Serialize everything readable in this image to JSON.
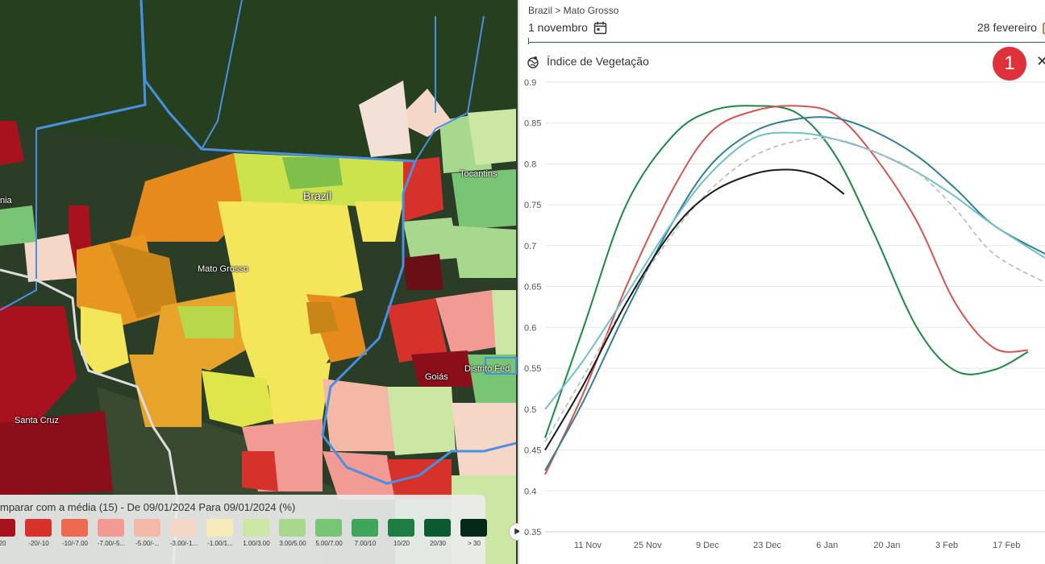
{
  "map": {
    "labels": {
      "brazil": "Brazil",
      "mato_grosso": "Mato Grosso",
      "tocantins": "Tocantins",
      "goias": "Goiás",
      "distrito_federal": "Distrito Fed",
      "santa_cruz": "Santa Cruz",
      "rondonia_fragment": "nia"
    },
    "legend": {
      "title": "mparar com a média (15) - De 09/01/2024 Para 09/01/2024 (%)",
      "items": [
        {
          "label": "20",
          "color": "#a8121e"
        },
        {
          "label": "-20/-10",
          "color": "#d7312c"
        },
        {
          "label": "-10/-7.00",
          "color": "#ee6a4f"
        },
        {
          "label": "-7.00/-5...",
          "color": "#f19b94"
        },
        {
          "label": "-5.00/-...",
          "color": "#f3b8a6"
        },
        {
          "label": "-3.00/-1...",
          "color": "#f5d7c8"
        },
        {
          "label": "-1.00/1...",
          "color": "#f6ecbb"
        },
        {
          "label": "1.00/3.00",
          "color": "#cbe7a3"
        },
        {
          "label": "3.00/5.00",
          "color": "#a7d88d"
        },
        {
          "label": "5.00/7.00",
          "color": "#79c576"
        },
        {
          "label": "7.00/10",
          "color": "#3fa55a"
        },
        {
          "label": "10/20",
          "color": "#1d7d43"
        },
        {
          "label": "20/30",
          "color": "#0b5a31"
        },
        {
          "label": "> 30",
          "color": "#062a18"
        }
      ]
    }
  },
  "panel": {
    "breadcrumb": "Brazil > Mato Grosso",
    "date_start": "1 novembro",
    "date_end": "28 fevereiro",
    "chart_title": "Índice de Vegetação",
    "badge": "1",
    "close_icon": "close-icon"
  },
  "chart_data": {
    "type": "line",
    "title": "Índice de Vegetação",
    "xlabel": "",
    "ylabel": "",
    "x_range": [
      "2023-11-01",
      "2024-02-26"
    ],
    "ylim": [
      0.35,
      0.9
    ],
    "y_ticks": [
      0.35,
      0.4,
      0.45,
      0.5,
      0.55,
      0.6,
      0.65,
      0.7,
      0.75,
      0.8,
      0.85,
      0.9
    ],
    "x_ticks": [
      "11 Nov",
      "25 Nov",
      "9 Dec",
      "23 Dec",
      "6 Jan",
      "20 Jan",
      "3 Feb",
      "17 Feb"
    ],
    "grid": true,
    "series": [
      {
        "color": "#1a8a3e",
        "style": "solid",
        "points": [
          [
            "2023-11-01",
            0.465
          ],
          [
            "2023-11-10",
            0.6
          ],
          [
            "2023-11-20",
            0.75
          ],
          [
            "2023-12-01",
            0.835
          ],
          [
            "2023-12-10",
            0.865
          ],
          [
            "2023-12-20",
            0.871
          ],
          [
            "2023-12-30",
            0.862
          ],
          [
            "2024-01-08",
            0.81
          ],
          [
            "2024-01-17",
            0.715
          ],
          [
            "2024-01-27",
            0.6
          ],
          [
            "2024-02-05",
            0.547
          ],
          [
            "2024-02-14",
            0.548
          ],
          [
            "2024-02-22",
            0.57
          ]
        ]
      },
      {
        "color": "#d9534f",
        "style": "solid",
        "points": [
          [
            "2023-11-01",
            0.42
          ],
          [
            "2023-11-10",
            0.52
          ],
          [
            "2023-11-20",
            0.65
          ],
          [
            "2023-12-01",
            0.77
          ],
          [
            "2023-12-10",
            0.84
          ],
          [
            "2023-12-20",
            0.865
          ],
          [
            "2023-12-30",
            0.871
          ],
          [
            "2024-01-08",
            0.86
          ],
          [
            "2024-01-17",
            0.81
          ],
          [
            "2024-01-27",
            0.73
          ],
          [
            "2024-02-05",
            0.63
          ],
          [
            "2024-02-14",
            0.575
          ],
          [
            "2024-02-22",
            0.572
          ]
        ]
      },
      {
        "color": "#2f7f9a",
        "style": "solid",
        "points": [
          [
            "2023-11-01",
            0.425
          ],
          [
            "2023-11-10",
            0.51
          ],
          [
            "2023-11-20",
            0.62
          ],
          [
            "2023-12-01",
            0.73
          ],
          [
            "2023-12-10",
            0.8
          ],
          [
            "2023-12-20",
            0.84
          ],
          [
            "2023-12-30",
            0.855
          ],
          [
            "2024-01-08",
            0.856
          ],
          [
            "2024-01-17",
            0.84
          ],
          [
            "2024-01-27",
            0.81
          ],
          [
            "2024-02-05",
            0.77
          ],
          [
            "2024-02-14",
            0.725
          ],
          [
            "2024-02-26",
            0.69
          ]
        ]
      },
      {
        "color": "#6fbfcc",
        "style": "solid",
        "points": [
          [
            "2023-11-01",
            0.5
          ],
          [
            "2023-11-10",
            0.56
          ],
          [
            "2023-11-20",
            0.64
          ],
          [
            "2023-12-01",
            0.73
          ],
          [
            "2023-12-10",
            0.79
          ],
          [
            "2023-12-20",
            0.832
          ],
          [
            "2023-12-30",
            0.838
          ],
          [
            "2024-01-08",
            0.83
          ],
          [
            "2024-01-17",
            0.815
          ],
          [
            "2024-01-27",
            0.79
          ],
          [
            "2024-02-05",
            0.76
          ],
          [
            "2024-02-14",
            0.725
          ],
          [
            "2024-02-26",
            0.685
          ]
        ]
      },
      {
        "color": "#b8b8b8",
        "style": "dashed",
        "points": [
          [
            "2023-11-01",
            0.46
          ],
          [
            "2023-11-10",
            0.54
          ],
          [
            "2023-11-20",
            0.63
          ],
          [
            "2023-12-01",
            0.715
          ],
          [
            "2023-12-10",
            0.77
          ],
          [
            "2023-12-20",
            0.81
          ],
          [
            "2023-12-30",
            0.828
          ],
          [
            "2024-01-08",
            0.83
          ],
          [
            "2024-01-17",
            0.815
          ],
          [
            "2024-01-27",
            0.79
          ],
          [
            "2024-02-05",
            0.745
          ],
          [
            "2024-02-14",
            0.69
          ],
          [
            "2024-02-26",
            0.655
          ]
        ]
      },
      {
        "color": "#1b1b1b",
        "style": "solid",
        "points": [
          [
            "2023-11-01",
            0.45
          ],
          [
            "2023-11-10",
            0.53
          ],
          [
            "2023-11-20",
            0.63
          ],
          [
            "2023-12-01",
            0.72
          ],
          [
            "2023-12-10",
            0.765
          ],
          [
            "2023-12-20",
            0.788
          ],
          [
            "2023-12-28",
            0.793
          ],
          [
            "2024-01-04",
            0.785
          ],
          [
            "2024-01-10",
            0.763
          ]
        ]
      }
    ]
  }
}
